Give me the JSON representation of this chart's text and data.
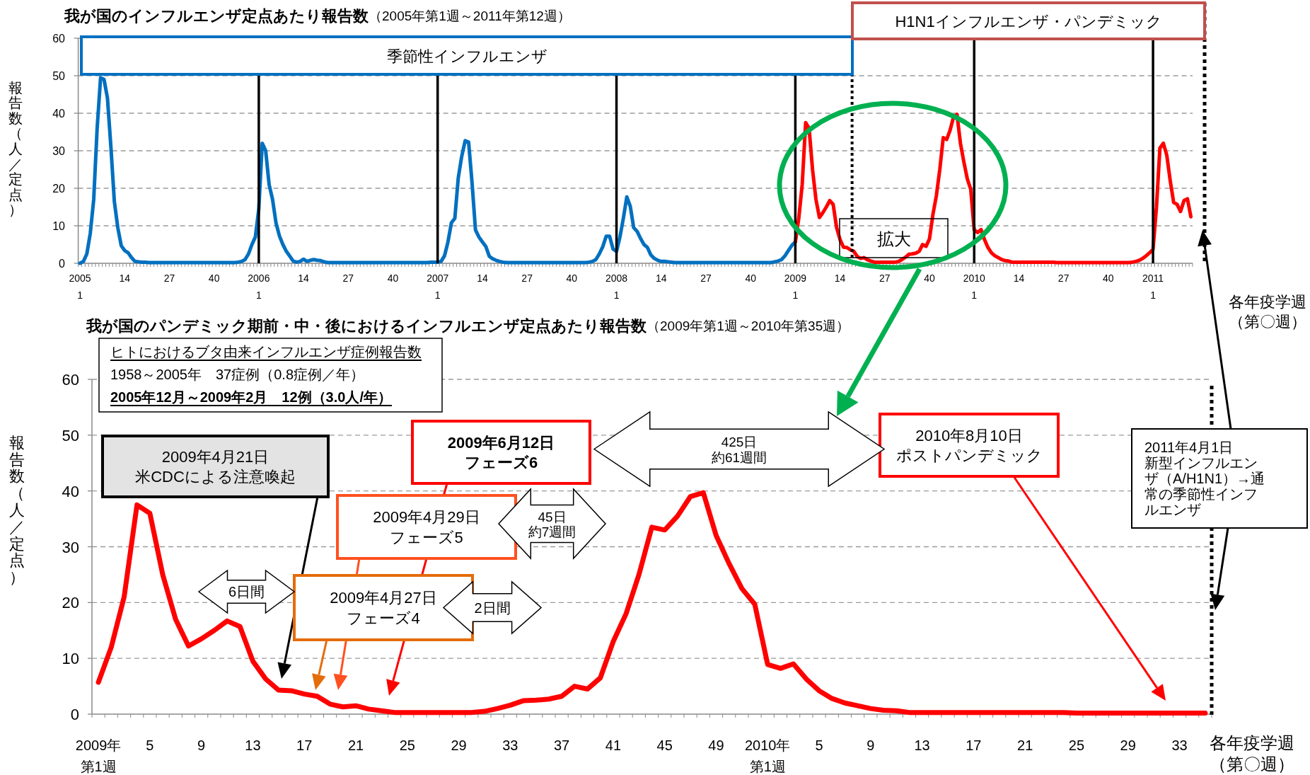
{
  "chart_data": [
    {
      "type": "line",
      "title": "我が国のインフルエンザ定点あたり報告数",
      "subtitle": "（2005年第1週～2011年第12週）",
      "ylabel": "報告数（人／定点）",
      "categories": [
        "2005\n1",
        null,
        null,
        null,
        null,
        null,
        null,
        null,
        null,
        null,
        null,
        null,
        null,
        "14",
        null,
        null,
        null,
        null,
        null,
        null,
        null,
        null,
        null,
        null,
        null,
        null,
        "27",
        null,
        null,
        null,
        null,
        null,
        null,
        null,
        null,
        null,
        null,
        null,
        null,
        "40",
        null,
        null,
        null,
        null,
        null,
        null,
        null,
        null,
        null,
        null,
        null,
        null,
        "2006\n1",
        null,
        null,
        null,
        null,
        null,
        null,
        null,
        null,
        null,
        null,
        null,
        null,
        "14",
        null,
        null,
        null,
        null,
        null,
        null,
        null,
        null,
        null,
        null,
        null,
        null,
        "27",
        null,
        null,
        null,
        null,
        null,
        null,
        null,
        null,
        null,
        null,
        null,
        null,
        "40",
        null,
        null,
        null,
        null,
        null,
        null,
        null,
        null,
        null,
        null,
        null,
        null,
        "2007\n1",
        null,
        null,
        null,
        null,
        null,
        null,
        null,
        null,
        null,
        null,
        null,
        null,
        "14",
        null,
        null,
        null,
        null,
        null,
        null,
        null,
        null,
        null,
        null,
        null,
        null,
        "27",
        null,
        null,
        null,
        null,
        null,
        null,
        null,
        null,
        null,
        null,
        null,
        null,
        "40",
        null,
        null,
        null,
        null,
        null,
        null,
        null,
        null,
        null,
        null,
        null,
        null,
        "2008\n1",
        null,
        null,
        null,
        null,
        null,
        null,
        null,
        null,
        null,
        null,
        null,
        null,
        "14",
        null,
        null,
        null,
        null,
        null,
        null,
        null,
        null,
        null,
        null,
        null,
        null,
        "27",
        null,
        null,
        null,
        null,
        null,
        null,
        null,
        null,
        null,
        null,
        null,
        null,
        "40",
        null,
        null,
        null,
        null,
        null,
        null,
        null,
        null,
        null,
        null,
        null,
        null,
        "2009\n1",
        null,
        null,
        null,
        null,
        null,
        null,
        null,
        null,
        null,
        null,
        null,
        null,
        "14",
        null,
        null,
        null,
        null,
        null,
        null,
        null,
        null,
        null,
        null,
        null,
        null,
        "27",
        null,
        null,
        null,
        null,
        null,
        null,
        null,
        null,
        null,
        null,
        null,
        null,
        "40",
        null,
        null,
        null,
        null,
        null,
        null,
        null,
        null,
        null,
        null,
        null,
        null,
        "2010\n1",
        null,
        null,
        null,
        null,
        null,
        null,
        null,
        null,
        null,
        null,
        null,
        null,
        "14",
        null,
        null,
        null,
        null,
        null,
        null,
        null,
        null,
        null,
        null,
        null,
        null,
        "27",
        null,
        null,
        null,
        null,
        null,
        null,
        null,
        null,
        null,
        null,
        null,
        null,
        "40",
        null,
        null,
        null,
        null,
        null,
        null,
        null,
        null,
        null,
        null,
        null,
        null,
        "2011\n1",
        null,
        null,
        null,
        null,
        null,
        null,
        null,
        null,
        null,
        null,
        null
      ],
      "ylim": [
        0,
        60
      ],
      "yticks": [
        0,
        10,
        20,
        30,
        40,
        50,
        60
      ],
      "grid": "y",
      "series": [
        {
          "color": "#0070c0",
          "values": [
            0,
            0.5,
            2.5,
            8,
            17,
            36,
            49.5,
            49,
            44,
            31,
            16.5,
            9.5,
            4.7,
            3.4,
            2.8,
            1.5,
            0.5,
            0.4,
            0.3,
            0.3,
            0.2,
            0.2,
            0.2,
            0.2,
            0.2,
            0.2,
            0.2,
            0.2,
            0.2,
            0.2,
            0.2,
            0.2,
            0.2,
            0.2,
            0.2,
            0.2,
            0.2,
            0.2,
            0.2,
            0.2,
            0.2,
            0.2,
            0.2,
            0.2,
            0.2,
            0.2,
            0.3,
            0.5,
            1,
            2.5,
            5,
            7,
            14.5,
            32,
            30,
            21,
            17,
            10.8,
            7.3,
            5,
            3.2,
            1.9,
            0.6,
            0.3,
            0.5,
            1.1,
            0.5,
            0.8,
            1.0,
            0.8,
            0.7,
            0.4,
            0.2,
            0.2,
            0.2,
            0.2,
            0.2,
            0.2,
            0.2,
            0.2,
            0.2,
            0.2,
            0.2,
            0.2,
            0.2,
            0.2,
            0.2,
            0.2,
            0.2,
            0.2,
            0.2,
            0.2,
            0.2,
            0.2,
            0.2,
            0.2,
            0.2,
            0.2,
            0.2,
            0.2,
            0.2,
            0.2,
            0.3,
            0.3,
            0.3,
            0.5,
            2,
            5.7,
            10.8,
            12,
            22.8,
            28.5,
            32.7,
            32.3,
            21.5,
            8.9,
            7,
            5.7,
            4.5,
            1.9,
            1.2,
            0.8,
            0.5,
            0.3,
            0.2,
            0.2,
            0.2,
            0.2,
            0.2,
            0.2,
            0.2,
            0.2,
            0.2,
            0.2,
            0.2,
            0.2,
            0.2,
            0.2,
            0.2,
            0.2,
            0.2,
            0.2,
            0.2,
            0.2,
            0.2,
            0.2,
            0.2,
            0.2,
            0.3,
            0.5,
            1,
            2.5,
            4.4,
            7.2,
            7.2,
            3.8,
            3.2,
            7,
            12,
            17.7,
            15.2,
            9.5,
            8.5,
            6.6,
            5,
            4.2,
            2.2,
            1.3,
            0.8,
            0.5,
            0.5,
            0.4,
            0.3,
            0.2,
            0.2,
            0.2,
            0.2,
            0.2,
            0.2,
            0.2,
            0.2,
            0.2,
            0.2,
            0.2,
            0.2,
            0.2,
            0.2,
            0.2,
            0.2,
            0.2,
            0.2,
            0.2,
            0.2,
            0.2,
            0.2,
            0.2,
            0.2,
            0.2,
            0.2,
            0.2,
            0.2,
            0.2,
            0.4,
            0.6,
            1,
            2,
            3.4,
            4.8,
            5.7,
            null,
            null,
            null,
            null,
            null,
            null,
            null,
            null,
            null,
            null,
            null,
            null,
            null,
            null,
            null,
            null,
            null,
            null,
            null,
            null,
            null,
            null,
            null,
            null,
            null,
            null,
            null,
            null,
            null,
            null,
            null,
            null,
            null,
            null,
            null,
            null,
            null,
            null,
            null,
            null,
            null,
            null,
            null,
            null,
            null,
            null,
            null,
            null,
            null,
            null,
            null,
            null,
            null,
            null,
            null,
            null,
            null,
            null,
            null,
            null,
            null,
            null,
            null,
            null,
            null,
            null,
            null,
            null,
            null,
            null,
            null,
            null,
            null,
            null,
            null,
            null,
            null,
            null,
            null,
            null,
            null,
            null,
            null,
            null,
            null,
            null,
            null,
            null,
            null,
            null,
            null,
            null,
            null,
            null,
            null,
            null,
            null,
            null,
            null,
            null,
            null,
            null,
            null,
            null,
            null,
            null,
            null,
            null,
            null,
            null,
            null,
            null,
            null,
            null,
            null
          ]
        },
        {
          "color": "#ff0000",
          "values": [
            null,
            null,
            null,
            null,
            null,
            null,
            null,
            null,
            null,
            null,
            null,
            null,
            null,
            null,
            null,
            null,
            null,
            null,
            null,
            null,
            null,
            null,
            null,
            null,
            null,
            null,
            null,
            null,
            null,
            null,
            null,
            null,
            null,
            null,
            null,
            null,
            null,
            null,
            null,
            null,
            null,
            null,
            null,
            null,
            null,
            null,
            null,
            null,
            null,
            null,
            null,
            null,
            null,
            null,
            null,
            null,
            null,
            null,
            null,
            null,
            null,
            null,
            null,
            null,
            null,
            null,
            null,
            null,
            null,
            null,
            null,
            null,
            null,
            null,
            null,
            null,
            null,
            null,
            null,
            null,
            null,
            null,
            null,
            null,
            null,
            null,
            null,
            null,
            null,
            null,
            null,
            null,
            null,
            null,
            null,
            null,
            null,
            null,
            null,
            null,
            null,
            null,
            null,
            null,
            null,
            null,
            null,
            null,
            null,
            null,
            null,
            null,
            null,
            null,
            null,
            null,
            null,
            null,
            null,
            null,
            null,
            null,
            null,
            null,
            null,
            null,
            null,
            null,
            null,
            null,
            null,
            null,
            null,
            null,
            null,
            null,
            null,
            null,
            null,
            null,
            null,
            null,
            null,
            null,
            null,
            null,
            null,
            null,
            null,
            null,
            null,
            null,
            null,
            null,
            null,
            null,
            null,
            null,
            null,
            null,
            null,
            null,
            null,
            null,
            null,
            null,
            null,
            null,
            null,
            null,
            null,
            null,
            null,
            null,
            null,
            null,
            null,
            null,
            null,
            null,
            null,
            null,
            null,
            null,
            null,
            null,
            null,
            null,
            null,
            null,
            null,
            null,
            null,
            null,
            null,
            null,
            null,
            null,
            null,
            null,
            null,
            null,
            null,
            null,
            null,
            null,
            null,
            null,
            5.7,
            12,
            21,
            37.5,
            36,
            25,
            17,
            12.2,
            13.5,
            15,
            16.7,
            15.7,
            9.5,
            6.3,
            4.3,
            4.2,
            3.6,
            3.2,
            1.8,
            1.3,
            1.5,
            0.9,
            0.6,
            0.3,
            0.3,
            0.3,
            0.3,
            0.3,
            0.3,
            0.3,
            0.5,
            1.0,
            1.6,
            2.4,
            2.5,
            2.7,
            3.2,
            5.0,
            4.5,
            6.5,
            13,
            18,
            25,
            33.5,
            33,
            35.5,
            39,
            39.7,
            32,
            27,
            22.5,
            19.7,
            8.9,
            8.2,
            9.0,
            6.3,
            4.2,
            2.8,
            2.0,
            1.5,
            1.0,
            0.7,
            0.6,
            0.3,
            0.3,
            0.3,
            0.3,
            0.3,
            0.3,
            0.3,
            0.3,
            0.3,
            0.3,
            0.3,
            0.3,
            0.3,
            0.2,
            0.2,
            0.2,
            0.2,
            0.2,
            0.2,
            0.2,
            0.2,
            0.2,
            0.2,
            0.2,
            0.2,
            0.2,
            0.2,
            0.2,
            0.2,
            0.2,
            0.2,
            0.2,
            0.2,
            0.2,
            0.2,
            0.3,
            0.5,
            0.8,
            1.3,
            2,
            2.8,
            3.7,
            15,
            30.7,
            32,
            28.8,
            22,
            16.2,
            15.7,
            13.8,
            16.7,
            17.2,
            12.4
          ]
        }
      ],
      "annotations": [
        "季節性インフルエンザ",
        "H1N1インフルエンザ・パンデミック",
        "拡大",
        "各年疫学週（第〇週）"
      ]
    },
    {
      "type": "line",
      "title": "我が国のパンデミック期前・中・後におけるインフルエンザ定点あたり報告数",
      "subtitle": "（2009年第1週～2010年第35週）",
      "ylabel": "報告数（人／定点）",
      "xlabel": "各年疫学週（第〇週）",
      "categories": [
        "2009年第1週",
        null,
        null,
        null,
        "5",
        null,
        null,
        null,
        "9",
        null,
        null,
        null,
        "13",
        null,
        null,
        null,
        "17",
        null,
        null,
        null,
        "21",
        null,
        null,
        null,
        "25",
        null,
        null,
        null,
        "29",
        null,
        null,
        null,
        "33",
        null,
        null,
        null,
        "37",
        null,
        null,
        null,
        "41",
        null,
        null,
        null,
        "45",
        null,
        null,
        null,
        "49",
        null,
        null,
        null,
        "2010年第1週",
        null,
        null,
        null,
        "5",
        null,
        null,
        null,
        "9",
        null,
        null,
        null,
        "13",
        null,
        null,
        null,
        "17",
        null,
        null,
        null,
        "21",
        null,
        null,
        null,
        "25",
        null,
        null,
        null,
        "29",
        null,
        null,
        null,
        "33",
        null,
        null
      ],
      "ylim": [
        0,
        60
      ],
      "yticks": [
        0,
        10,
        20,
        30,
        40,
        50,
        60
      ],
      "grid": "y",
      "series": [
        {
          "color": "#ff0000",
          "values": [
            5.7,
            12,
            21,
            37.5,
            36,
            25,
            17,
            12.2,
            13.5,
            15,
            16.7,
            15.7,
            9.5,
            6.3,
            4.3,
            4.2,
            3.6,
            3.2,
            1.8,
            1.3,
            1.5,
            0.9,
            0.6,
            0.3,
            0.3,
            0.3,
            0.3,
            0.3,
            0.3,
            0.3,
            0.5,
            1.0,
            1.6,
            2.4,
            2.5,
            2.7,
            3.2,
            5.0,
            4.5,
            6.5,
            13,
            18,
            25,
            33.5,
            33,
            35.5,
            39,
            39.7,
            32,
            27,
            22.5,
            19.7,
            8.9,
            8.2,
            9.0,
            6.3,
            4.2,
            2.8,
            2.0,
            1.5,
            1.0,
            0.7,
            0.6,
            0.3,
            0.3,
            0.3,
            0.3,
            0.3,
            0.3,
            0.3,
            0.3,
            0.3,
            0.3,
            0.3,
            0.3,
            0.3,
            0.2,
            0.2,
            0.2,
            0.2,
            0.2,
            0.2,
            0.2,
            0.2,
            0.2,
            0.2,
            0.2
          ]
        }
      ],
      "annotations": [
        "ヒトにおけるブタ由来インフルエンザ症例報告数",
        "1958～2005年　37症例（0.8症例／年）",
        "2005年12月～2009年2月　12例（3.0人/年）",
        "2009年4月21日米CDCによる注意喚起",
        "2009年4月27日フェーズ4",
        "2009年4月29日フェーズ5",
        "2009年6月12日フェーズ6",
        "2010年8月10日ポストパンデミック",
        "2011年4月1日新型インフルエンザ（A/H1N1）→通常の季節性インフルエンザ",
        "6日間",
        "2日間",
        "45日約7週間",
        "425日約61週間"
      ]
    }
  ]
}
